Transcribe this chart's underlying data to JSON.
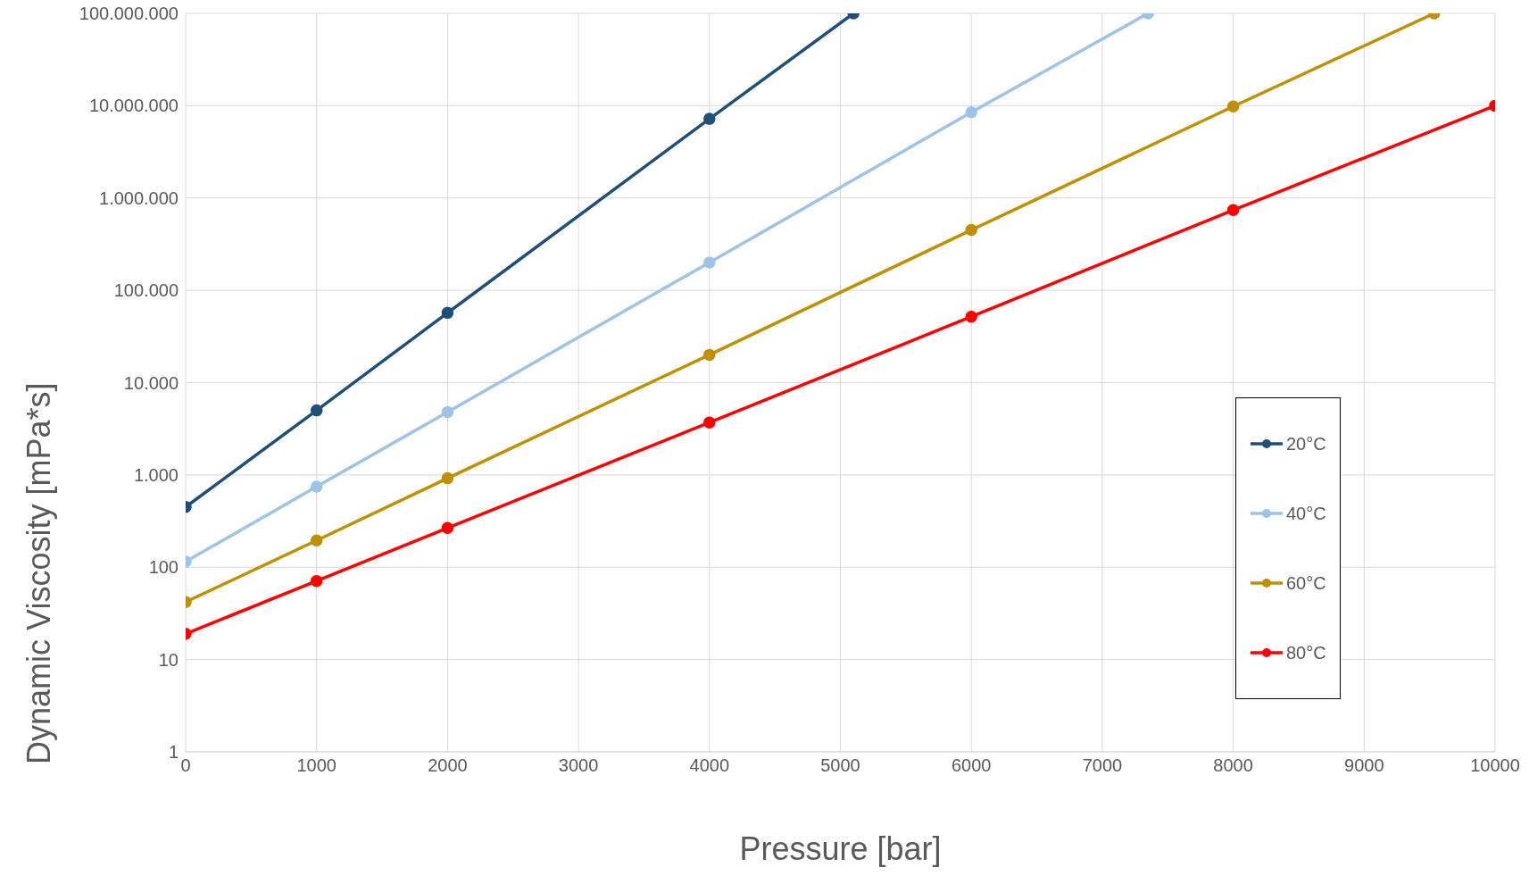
{
  "chart_data": {
    "type": "line",
    "xlabel": "Pressure [bar]",
    "ylabel": "Dynamic Viscosity [mPa*s]",
    "log": "y",
    "grid": true,
    "legend": "right",
    "marker": "circle",
    "line_style": "solid",
    "xlim": [
      0,
      10000
    ],
    "xticks": [
      0,
      1000,
      2000,
      3000,
      4000,
      5000,
      6000,
      7000,
      8000,
      9000,
      10000
    ],
    "ylim": [
      1,
      100000000
    ],
    "yticks": [
      {
        "value": 1,
        "label": "1"
      },
      {
        "value": 10,
        "label": "10"
      },
      {
        "value": 100,
        "label": "100"
      },
      {
        "value": 1000,
        "label": "1.000"
      },
      {
        "value": 10000,
        "label": "10.000"
      },
      {
        "value": 100000,
        "label": "100.000"
      },
      {
        "value": 1000000,
        "label": "1.000.000"
      },
      {
        "value": 10000000,
        "label": "10.000.000"
      },
      {
        "value": 100000000,
        "label": "100.000.000"
      }
    ],
    "series": [
      {
        "name": "20°C",
        "color": "#1f4e79",
        "x": [
          0,
          1000,
          2000,
          4000,
          5100
        ],
        "values": [
          450,
          5000,
          57000,
          7200000,
          100000000
        ]
      },
      {
        "name": "40°C",
        "color": "#9dc3e6",
        "x": [
          0,
          1000,
          2000,
          4000,
          6000,
          7350
        ],
        "values": [
          115,
          745,
          4800,
          200000,
          8500000,
          100000000
        ]
      },
      {
        "name": "60°C",
        "color": "#bf9000",
        "x": [
          0,
          1000,
          2000,
          4000,
          6000,
          8000,
          9535
        ],
        "values": [
          42,
          195,
          920,
          20000,
          450000,
          9800000,
          100000000
        ]
      },
      {
        "name": "80°C",
        "color": "#ff0000",
        "x": [
          0,
          1000,
          2000,
          4000,
          6000,
          8000,
          10000
        ],
        "values": [
          19,
          71,
          266,
          3700,
          51700,
          740000,
          10000000
        ]
      }
    ]
  }
}
